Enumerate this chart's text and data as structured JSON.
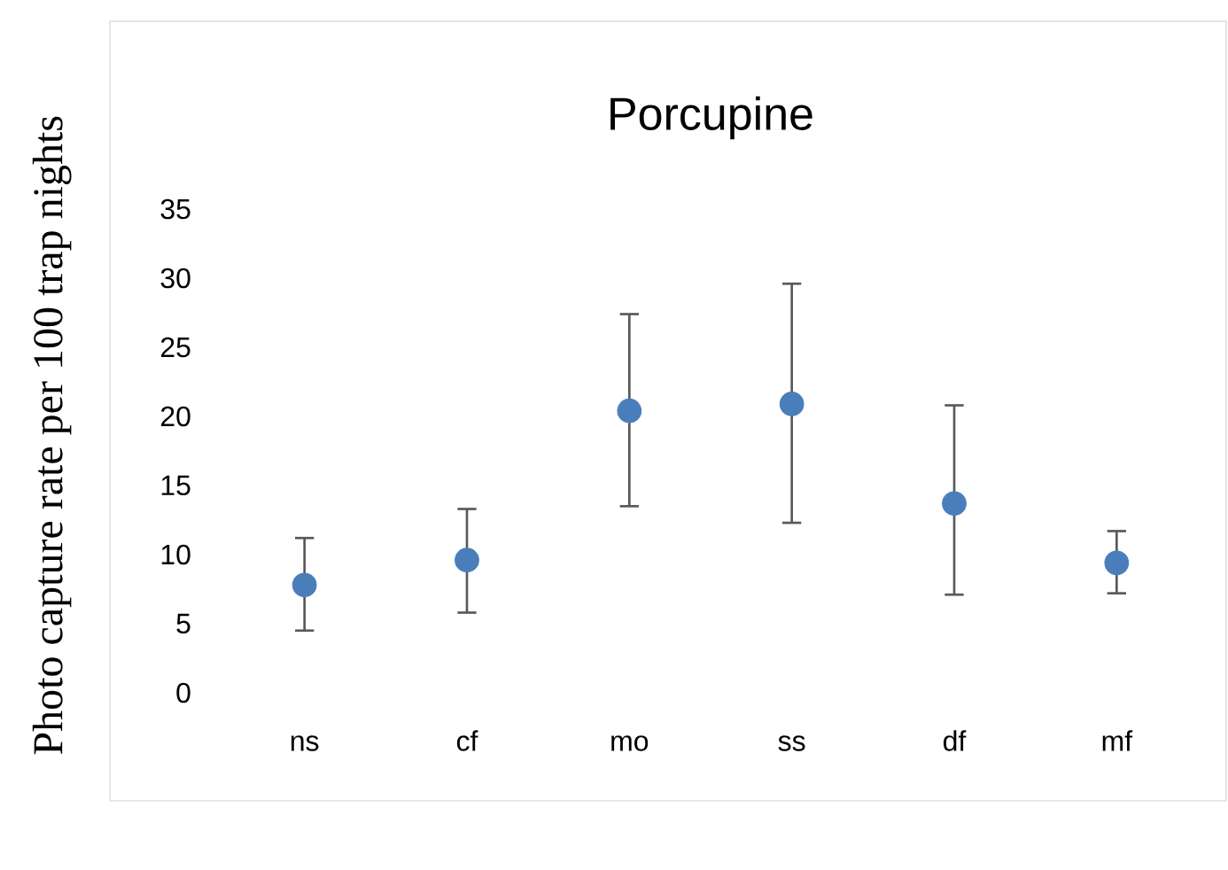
{
  "chart_data": {
    "type": "scatter",
    "title": "Porcupine",
    "ylabel": "Photo capture rate per 100 trap nights",
    "categories": [
      "ns",
      "cf",
      "mo",
      "ss",
      "df",
      "mf"
    ],
    "values": [
      7.8,
      9.6,
      20.4,
      20.9,
      13.7,
      9.4
    ],
    "errors": [
      [
        4.5,
        11.2
      ],
      [
        5.8,
        13.3
      ],
      [
        13.5,
        27.4
      ],
      [
        12.3,
        29.6
      ],
      [
        7.1,
        20.8
      ],
      [
        7.2,
        11.7
      ]
    ],
    "color": "#4a7ebb",
    "marker": "circle",
    "grid": false,
    "ylim": [
      0,
      35
    ],
    "yticks": [
      0,
      5,
      10,
      15,
      20,
      25,
      30,
      35
    ]
  }
}
